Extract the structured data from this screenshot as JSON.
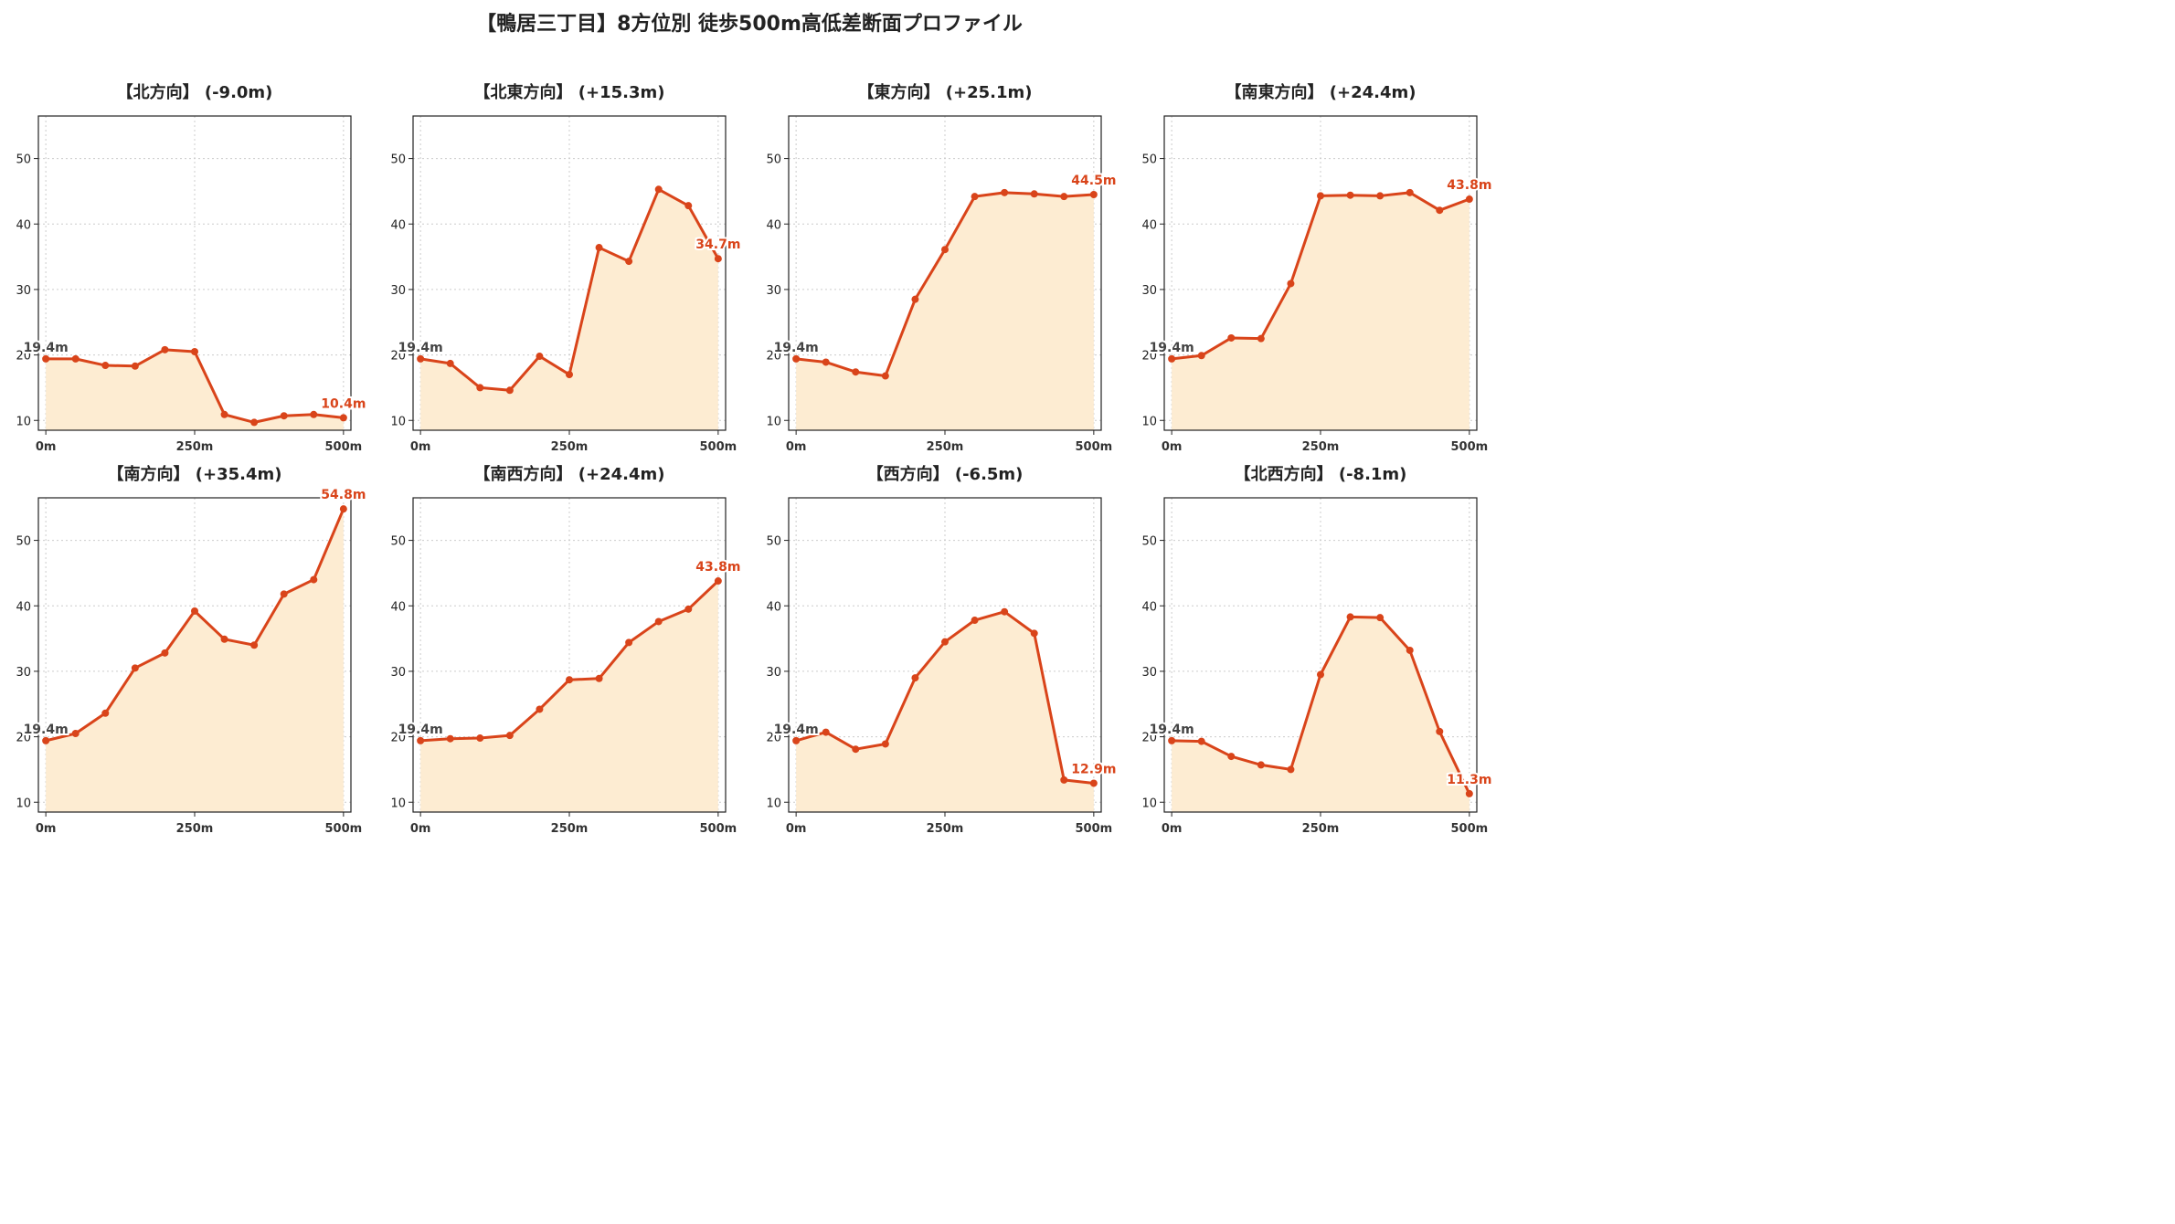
{
  "title": "【鴨居三丁目】8方位別 徒歩500m高低差断面プロファイル",
  "colors": {
    "line": "#d9441a",
    "fill": "#fdecd2",
    "grid": "#cccccc",
    "start_label": "#444444"
  },
  "chart_data": [
    {
      "type": "area",
      "title": "【北方向】 (-9.0m)",
      "x": [
        0,
        50,
        100,
        150,
        200,
        250,
        300,
        350,
        400,
        450,
        500
      ],
      "y": [
        19.4,
        19.4,
        18.4,
        18.3,
        20.8,
        20.5,
        10.9,
        9.7,
        10.7,
        10.9,
        10.4
      ],
      "xticks": [
        "0m",
        "250m",
        "500m"
      ],
      "yticks": [
        10,
        20,
        30,
        40,
        50
      ],
      "ylim": [
        8.5,
        56.5
      ],
      "start_label": "19.4m",
      "end_label": "10.4m",
      "grid": true
    },
    {
      "type": "area",
      "title": "【北東方向】 (+15.3m)",
      "x": [
        0,
        50,
        100,
        150,
        200,
        250,
        300,
        350,
        400,
        450,
        500
      ],
      "y": [
        19.4,
        18.7,
        15.0,
        14.6,
        19.8,
        17.0,
        36.4,
        34.3,
        45.3,
        42.8,
        34.7
      ],
      "xticks": [
        "0m",
        "250m",
        "500m"
      ],
      "yticks": [
        10,
        20,
        30,
        40,
        50
      ],
      "ylim": [
        8.5,
        56.5
      ],
      "start_label": "19.4m",
      "end_label": "34.7m",
      "grid": true
    },
    {
      "type": "area",
      "title": "【東方向】 (+25.1m)",
      "x": [
        0,
        50,
        100,
        150,
        200,
        250,
        300,
        350,
        400,
        450,
        500
      ],
      "y": [
        19.4,
        18.9,
        17.4,
        16.8,
        28.5,
        36.1,
        44.2,
        44.8,
        44.6,
        44.2,
        44.5
      ],
      "xticks": [
        "0m",
        "250m",
        "500m"
      ],
      "yticks": [
        10,
        20,
        30,
        40,
        50
      ],
      "ylim": [
        8.5,
        56.5
      ],
      "start_label": "19.4m",
      "end_label": "44.5m",
      "grid": true
    },
    {
      "type": "area",
      "title": "【南東方向】 (+24.4m)",
      "x": [
        0,
        50,
        100,
        150,
        200,
        250,
        300,
        350,
        400,
        450,
        500
      ],
      "y": [
        19.4,
        19.9,
        22.6,
        22.5,
        30.9,
        44.3,
        44.4,
        44.3,
        44.8,
        42.1,
        43.8
      ],
      "xticks": [
        "0m",
        "250m",
        "500m"
      ],
      "yticks": [
        10,
        20,
        30,
        40,
        50
      ],
      "ylim": [
        8.5,
        56.5
      ],
      "start_label": "19.4m",
      "end_label": "43.8m",
      "grid": true
    },
    {
      "type": "area",
      "title": "【南方向】 (+35.4m)",
      "x": [
        0,
        50,
        100,
        150,
        200,
        250,
        300,
        350,
        400,
        450,
        500
      ],
      "y": [
        19.4,
        20.5,
        23.6,
        30.5,
        32.8,
        39.2,
        34.9,
        34.0,
        41.8,
        44.0,
        54.8
      ],
      "xticks": [
        "0m",
        "250m",
        "500m"
      ],
      "yticks": [
        10,
        20,
        30,
        40,
        50
      ],
      "ylim": [
        8.5,
        56.5
      ],
      "start_label": "19.4m",
      "end_label": "54.8m",
      "grid": true
    },
    {
      "type": "area",
      "title": "【南西方向】 (+24.4m)",
      "x": [
        0,
        50,
        100,
        150,
        200,
        250,
        300,
        350,
        400,
        450,
        500
      ],
      "y": [
        19.4,
        19.7,
        19.8,
        20.2,
        24.2,
        28.7,
        28.9,
        34.4,
        37.6,
        39.5,
        43.8
      ],
      "xticks": [
        "0m",
        "250m",
        "500m"
      ],
      "yticks": [
        10,
        20,
        30,
        40,
        50
      ],
      "ylim": [
        8.5,
        56.5
      ],
      "start_label": "19.4m",
      "end_label": "43.8m",
      "grid": true
    },
    {
      "type": "area",
      "title": "【西方向】 (-6.5m)",
      "x": [
        0,
        50,
        100,
        150,
        200,
        250,
        300,
        350,
        400,
        450,
        500
      ],
      "y": [
        19.4,
        20.7,
        18.1,
        18.9,
        29.0,
        34.5,
        37.8,
        39.1,
        35.8,
        13.4,
        12.9
      ],
      "xticks": [
        "0m",
        "250m",
        "500m"
      ],
      "yticks": [
        10,
        20,
        30,
        40,
        50
      ],
      "ylim": [
        8.5,
        56.5
      ],
      "start_label": "19.4m",
      "end_label": "12.9m",
      "grid": true
    },
    {
      "type": "area",
      "title": "【北西方向】 (-8.1m)",
      "x": [
        0,
        50,
        100,
        150,
        200,
        250,
        300,
        350,
        400,
        450,
        500
      ],
      "y": [
        19.4,
        19.3,
        17.0,
        15.7,
        15.0,
        29.5,
        38.3,
        38.2,
        33.2,
        20.8,
        11.3
      ],
      "xticks": [
        "0m",
        "250m",
        "500m"
      ],
      "yticks": [
        10,
        20,
        30,
        40,
        50
      ],
      "ylim": [
        8.5,
        56.5
      ],
      "start_label": "19.4m",
      "end_label": "11.3m",
      "grid": true
    }
  ]
}
